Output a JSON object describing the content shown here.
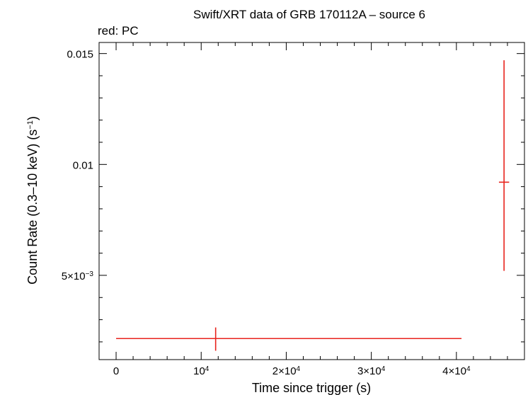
{
  "chart_data": {
    "type": "scatter",
    "title": "Swift/XRT data of GRB 170112A – source 6",
    "subtitle": "red: PC",
    "xlabel": "Time since trigger (s)",
    "ylabel_main": "Count Rate (0.3–10 keV) (s",
    "ylabel_sup": "−1",
    "ylabel_end": ")",
    "xlim": [
      -2000,
      48000
    ],
    "ylim": [
      0.0012,
      0.0155
    ],
    "grid": false,
    "x_ticks": [
      {
        "value": 0,
        "label": "0",
        "sup": ""
      },
      {
        "value": 10000,
        "label": "10",
        "sup": "4"
      },
      {
        "value": 20000,
        "label": "2×10",
        "sup": "4"
      },
      {
        "value": 30000,
        "label": "3×10",
        "sup": "4"
      },
      {
        "value": 40000,
        "label": "4×10",
        "sup": "4"
      }
    ],
    "y_ticks": [
      {
        "value": 0.005,
        "label": "5×10",
        "sup": "−3"
      },
      {
        "value": 0.01,
        "label": "0.01",
        "sup": ""
      },
      {
        "value": 0.015,
        "label": "0.015",
        "sup": ""
      }
    ],
    "series": [
      {
        "color": "#e8231d",
        "points": [
          {
            "x": 11700,
            "xerr_low": 11700,
            "xerr_high": 28900,
            "y": 0.00215,
            "yerr_low": 0.00055,
            "yerr_high": 0.0005
          },
          {
            "x": 45600,
            "xerr_low": 600,
            "xerr_high": 600,
            "y": 0.0092,
            "yerr_low": 0.004,
            "yerr_high": 0.0055
          }
        ]
      }
    ]
  }
}
